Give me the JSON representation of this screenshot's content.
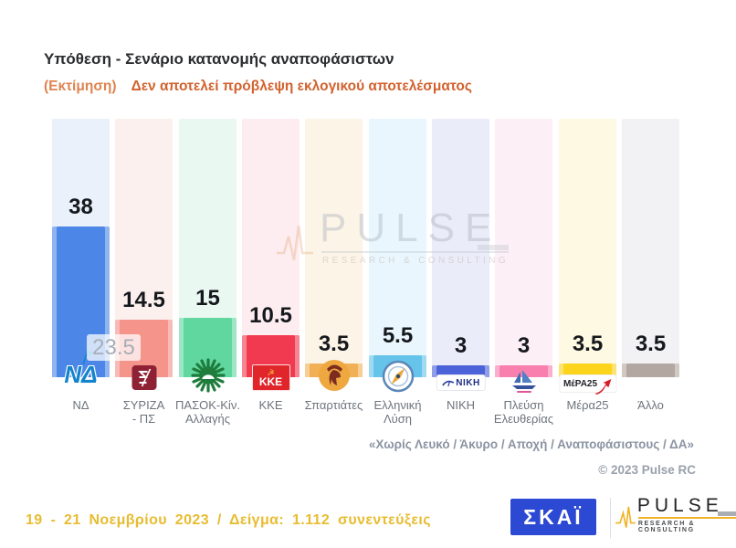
{
  "header": {
    "subtitle_prefix": "(Εκτίμηση)",
    "subtitle": "Δεν αποτελεί πρόβλεψη εκλογικού αποτελέσματος"
  },
  "chart_data": {
    "type": "bar",
    "title": "Υπόθεση - Σενάριο κατανομής αναποφάσιστων",
    "categories": [
      "ΝΔ",
      "ΣΥΡΙΖΑ - ΠΣ",
      "ΠΑΣΟΚ-Κίν. Αλλαγής",
      "ΚΚΕ",
      "Σπαρτιάτες",
      "Ελληνική Λύση",
      "ΝΙΚΗ",
      "Πλεύση Ελευθερίας",
      "Μέρα25",
      "Άλλο"
    ],
    "category_labels": [
      "ΝΔ",
      "ΣΥΡΙΖΑ\n- ΠΣ",
      "ΠΑΣΟΚ-Κίν.\nΑλλαγής",
      "ΚΚΕ",
      "Σπαρτιάτες",
      "Ελληνική\nΛύση",
      "ΝΙΚΗ",
      "Πλεύση\nΕλευθερίας",
      "Μέρα25",
      "Άλλο"
    ],
    "values": [
      38,
      14.5,
      15,
      10.5,
      3.5,
      5.5,
      3,
      3,
      3.5,
      3.5
    ],
    "value_labels": [
      "38",
      "14.5",
      "15",
      "10.5",
      "3.5",
      "5.5",
      "3",
      "3",
      "3.5",
      "3.5"
    ],
    "annotation": {
      "text": "23.5",
      "attached_to": "ΝΔ"
    },
    "bar_colors": [
      "#4c86e7",
      "#f4948b",
      "#61d7a0",
      "#f13a50",
      "#f1b056",
      "#66c4eb",
      "#4c62d8",
      "#f97fae",
      "#fcd41c",
      "#b3a8a1"
    ],
    "band_colors": [
      "#eaf1fb",
      "#fcf0ee",
      "#e9f8f0",
      "#fdedf0",
      "#fcf4e7",
      "#e9f6fd",
      "#ebecf9",
      "#fceff5",
      "#fdf9e3",
      "#f2f1f3"
    ],
    "ylim": [
      0,
      65
    ],
    "grid": false,
    "legend": false
  },
  "logos": {
    "nd": "ΝΔ",
    "kke": "ΚΚΕ",
    "niki": "ΝΙΚΗ",
    "mera25": "ΜέΡΑ25"
  },
  "pulse_brand": {
    "name": "PULSE",
    "tagline": "RESEARCH & CONSULTING"
  },
  "notes": {
    "exclusions": "«Χωρίς Λευκό / Άκυρο / Αποχή / Αναποφάσιστους / ΔΑ»",
    "copyright": "© 2023 Pulse RC"
  },
  "footer": {
    "fieldwork": "19 - 21  Νοεμβρίου  2023  /  Δείγμα:  1.112 συνεντεύξεις",
    "skai": "ΣΚΑΪ"
  }
}
